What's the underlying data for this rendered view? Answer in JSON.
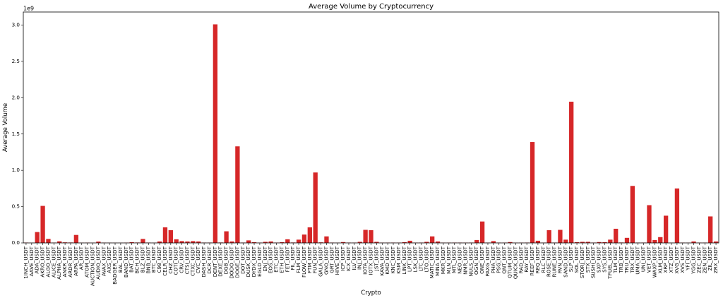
{
  "chart_data": {
    "type": "bar",
    "title": "Average Volume by Cryptocurrency",
    "xlabel": "Crypto",
    "ylabel": "Average Volume",
    "y_offset_label": "1e9",
    "ylim": [
      0,
      3.18
    ],
    "y_ticks": [
      0.0,
      0.5,
      1.0,
      1.5,
      2.0,
      2.5,
      3.0
    ],
    "y_tick_labels": [
      "0.0",
      "0.5",
      "1.0",
      "1.5",
      "2.0",
      "2.5",
      "3.0"
    ],
    "bar_color": "#d62728",
    "grid": false,
    "legend": "none",
    "categories": [
      "1INCH_USDT",
      "AAVE_USDT",
      "ADA_USDT",
      "AKRO_USDT",
      "ALGO_USDT",
      "ALICE_USDT",
      "ALPHA_USDT",
      "ANKR_USDT",
      "ARDR_USDT",
      "ARPA_USDT",
      "AR_USDT",
      "ATOM_USDT",
      "AUCTION_USDT",
      "AUDIO_USDT",
      "AVAX_USDT",
      "AXS_USDT",
      "BADGER_USDT",
      "BAL_USDT",
      "BAND_USDT",
      "BAT_USDT",
      "BCH_USDT",
      "BLZ_USDT",
      "BNB_USDT",
      "BTC_USDT",
      "C98_USDT",
      "CELR_USDT",
      "CHZ_USDT",
      "COTI_USDT",
      "CRV_USDT",
      "CTSI_USDT",
      "CTXC_USDT",
      "CVC_USDT",
      "DASH_USDT",
      "DCR_USDT",
      "DENT_USDT",
      "DEXE_USDT",
      "DGB_USDT",
      "DODO_USDT",
      "DOGE_USDT",
      "DOT_USDT",
      "DUSK_USDT",
      "DYDX_USDT",
      "EGLD_USDT",
      "ENJ_USDT",
      "EOS_USDT",
      "ETC_USDT",
      "ETH_USDT",
      "FET_USDT",
      "FIL_USDT",
      "FLM_USDT",
      "FLOW_USDT",
      "FTM_USDT",
      "FUN_USDT",
      "GALA_USDT",
      "GNO_USDT",
      "GRT_USDT",
      "HIVE_USDT",
      "ICP_USDT",
      "ICX_USDT",
      "ILV_USDT",
      "INJ_USDT",
      "IOTA_USDT",
      "IOTX_USDT",
      "JST_USDT",
      "KAVA_USDT",
      "KMD_USDT",
      "KNC_USDT",
      "KSM_USDT",
      "LINK_USDT",
      "LPT_USDT",
      "LSK_USDT",
      "LTC_USDT",
      "LTO_USDT",
      "MATIC_USDT",
      "MINA_USDT",
      "MKR_USDT",
      "MLN_USDT",
      "MTL_USDT",
      "NEO_USDT",
      "NMR_USDT",
      "NULS_USDT",
      "OGN_USDT",
      "ONE_USDT",
      "PAXG_USDT",
      "PHA_USDT",
      "PSG_USDT",
      "QNT_USDT",
      "QTUM_USDT",
      "QUICK_USDT",
      "RAD_USDT",
      "RAY_USDT",
      "REEF_USDT",
      "REQ_USDT",
      "RLC_USDT",
      "ROSE_USDT",
      "RUNE_USDT",
      "RVN_USDT",
      "SAND_USDT",
      "SLP_USDT",
      "SOL_USDT",
      "STORJ_USDT",
      "STX_USDT",
      "SUSHI_USDT",
      "SXP_USDT",
      "SYS_USDT",
      "TFUEL_USDT",
      "TLM_USDT",
      "TRB_USDT",
      "TRU_USDT",
      "TRX_USDT",
      "UMA_USDT",
      "UNI_USDT",
      "VET_USDT",
      "WAXP_USDT",
      "XLM_USDT",
      "XRP_USDT",
      "XTZ_USDT",
      "XVG_USDT",
      "XVS_USDT",
      "YFI_USDT",
      "YGG_USDT",
      "ZEC_USDT",
      "ZEN_USDT",
      "ZIL_USDT",
      "ZRX_USDT"
    ],
    "values": [
      0.005,
      0.002,
      0.15,
      0.51,
      0.055,
      0.004,
      0.022,
      0.008,
      0.006,
      0.11,
      0.003,
      0.004,
      0.002,
      0.018,
      0.004,
      0.003,
      0.002,
      0.002,
      0.004,
      0.01,
      0.006,
      0.055,
      0.005,
      0.002,
      0.02,
      0.215,
      0.175,
      0.05,
      0.025,
      0.02,
      0.025,
      0.02,
      0.005,
      0.005,
      3.01,
      0.006,
      0.16,
      0.02,
      1.33,
      0.005,
      0.035,
      0.01,
      0.004,
      0.015,
      0.02,
      0.005,
      0.01,
      0.05,
      0.006,
      0.045,
      0.115,
      0.215,
      0.97,
      0.008,
      0.09,
      0.005,
      0.003,
      0.012,
      0.005,
      0.004,
      0.015,
      0.18,
      0.175,
      0.015,
      0.004,
      0.004,
      0.005,
      0.004,
      0.01,
      0.03,
      0.004,
      0.005,
      0.015,
      0.09,
      0.02,
      0.004,
      0.004,
      0.005,
      0.005,
      0.004,
      0.005,
      0.04,
      0.295,
      0.004,
      0.025,
      0.004,
      0.004,
      0.012,
      0.003,
      0.004,
      0.005,
      1.39,
      0.03,
      0.004,
      0.175,
      0.005,
      0.18,
      0.045,
      1.945,
      0.01,
      0.015,
      0.015,
      0.005,
      0.012,
      0.01,
      0.045,
      0.195,
      0.006,
      0.07,
      0.785,
      0.004,
      0.005,
      0.52,
      0.04,
      0.08,
      0.375,
      0.003,
      0.75,
      0.004,
      0.003,
      0.02,
      0.004,
      0.004,
      0.365,
      0.02
    ]
  }
}
